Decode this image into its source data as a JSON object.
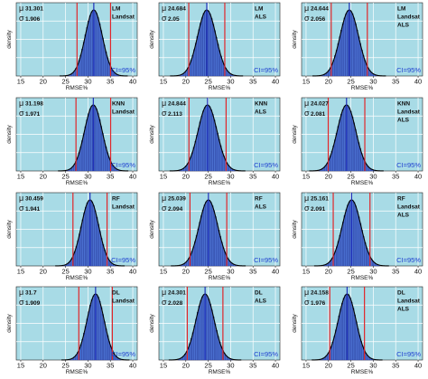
{
  "figure": {
    "ylabel": "density",
    "xlabel": "RMSE%",
    "ci_label": "CI=95%"
  },
  "colors": {
    "background": "#a8dbe6",
    "bar": "#4a6fcf",
    "bar_edge": "#1f2f8f",
    "curve": "#000000",
    "mean_line": "#1f2fb8",
    "ci_line": "#e0262a",
    "ci_text": "#1f3fd0"
  },
  "chart_data": [
    {
      "type": "bar",
      "row": 0,
      "col": 0,
      "model": "LM",
      "data": "Landsat",
      "mu": "31.301",
      "sigma": "1.906",
      "mean": 31.301,
      "sd": 1.906,
      "ci": [
        27.56,
        35.04
      ],
      "xlim": [
        14,
        41
      ],
      "xticks": [
        15,
        20,
        25,
        30,
        35,
        40
      ],
      "xlabel": "RMSE%",
      "ylabel": "density",
      "annotation": "CI=95%",
      "grid": true
    },
    {
      "type": "bar",
      "row": 0,
      "col": 1,
      "model": "LM",
      "data": "ALS",
      "mu": "24.684",
      "sigma": "2.05",
      "mean": 24.684,
      "sd": 2.05,
      "ci": [
        20.66,
        28.7
      ],
      "xlim": [
        14,
        41
      ],
      "xticks": [
        15,
        20,
        25,
        30,
        35,
        40
      ],
      "xlabel": "RMSE%",
      "ylabel": "density",
      "annotation": "CI=95%",
      "grid": true
    },
    {
      "type": "bar",
      "row": 0,
      "col": 2,
      "model": "LM",
      "data": "Landsat ALS",
      "mu": "24.644",
      "sigma": "2.056",
      "mean": 24.644,
      "sd": 2.056,
      "ci": [
        20.61,
        28.67
      ],
      "xlim": [
        14,
        41
      ],
      "xticks": [
        15,
        20,
        25,
        30,
        35,
        40
      ],
      "xlabel": "RMSE%",
      "ylabel": "density",
      "annotation": "CI=95%",
      "grid": true
    },
    {
      "type": "bar",
      "row": 1,
      "col": 0,
      "model": "KNN",
      "data": "Landsat",
      "mu": "31.198",
      "sigma": "1.971",
      "mean": 31.198,
      "sd": 1.971,
      "ci": [
        27.33,
        35.06
      ],
      "xlim": [
        14,
        41
      ],
      "xticks": [
        15,
        20,
        25,
        30,
        35,
        40
      ],
      "xlabel": "RMSE%",
      "ylabel": "density",
      "annotation": "CI=95%",
      "grid": true
    },
    {
      "type": "bar",
      "row": 1,
      "col": 1,
      "model": "KNN",
      "data": "ALS",
      "mu": "24.844",
      "sigma": "2.113",
      "mean": 24.844,
      "sd": 2.113,
      "ci": [
        20.7,
        28.99
      ],
      "xlim": [
        14,
        41
      ],
      "xticks": [
        15,
        20,
        25,
        30,
        35,
        40
      ],
      "xlabel": "RMSE%",
      "ylabel": "density",
      "annotation": "CI=95%",
      "grid": true
    },
    {
      "type": "bar",
      "row": 1,
      "col": 2,
      "model": "KNN",
      "data": "Landsat ALS",
      "mu": "24.027",
      "sigma": "2.081",
      "mean": 24.027,
      "sd": 2.081,
      "ci": [
        19.95,
        28.11
      ],
      "xlim": [
        14,
        41
      ],
      "xticks": [
        15,
        20,
        25,
        30,
        35,
        40
      ],
      "xlabel": "RMSE%",
      "ylabel": "density",
      "annotation": "CI=95%",
      "grid": true
    },
    {
      "type": "bar",
      "row": 2,
      "col": 0,
      "model": "RF",
      "data": "Landsat",
      "mu": "30.459",
      "sigma": "1.941",
      "mean": 30.459,
      "sd": 1.941,
      "ci": [
        26.65,
        34.26
      ],
      "xlim": [
        14,
        41
      ],
      "xticks": [
        15,
        20,
        25,
        30,
        35,
        40
      ],
      "xlabel": "RMSE%",
      "ylabel": "density",
      "annotation": "CI=95%",
      "grid": true
    },
    {
      "type": "bar",
      "row": 2,
      "col": 1,
      "model": "RF",
      "data": "ALS",
      "mu": "25.039",
      "sigma": "2.094",
      "mean": 25.039,
      "sd": 2.094,
      "ci": [
        20.93,
        29.14
      ],
      "xlim": [
        14,
        41
      ],
      "xticks": [
        15,
        20,
        25,
        30,
        35,
        40
      ],
      "xlabel": "RMSE%",
      "ylabel": "density",
      "annotation": "CI=95%",
      "grid": true
    },
    {
      "type": "bar",
      "row": 2,
      "col": 2,
      "model": "RF",
      "data": "Landsat ALS",
      "mu": "25.161",
      "sigma": "2.091",
      "mean": 25.161,
      "sd": 2.091,
      "ci": [
        21.06,
        29.26
      ],
      "xlim": [
        14,
        41
      ],
      "xticks": [
        15,
        20,
        25,
        30,
        35,
        40
      ],
      "xlabel": "RMSE%",
      "ylabel": "density",
      "annotation": "CI=95%",
      "grid": true
    },
    {
      "type": "bar",
      "row": 3,
      "col": 0,
      "model": "DL",
      "data": "Landsat",
      "mu": "31.7",
      "sigma": "1.909",
      "mean": 31.7,
      "sd": 1.909,
      "ci": [
        27.96,
        35.44
      ],
      "xlim": [
        14,
        41
      ],
      "xticks": [
        15,
        20,
        25,
        30,
        35,
        40
      ],
      "xlabel": "RMSE%",
      "ylabel": "density",
      "annotation": "CI=95%",
      "grid": true
    },
    {
      "type": "bar",
      "row": 3,
      "col": 1,
      "model": "DL",
      "data": "ALS",
      "mu": "24.301",
      "sigma": "2.028",
      "mean": 24.301,
      "sd": 2.028,
      "ci": [
        20.33,
        28.28
      ],
      "xlim": [
        14,
        41
      ],
      "xticks": [
        15,
        20,
        25,
        30,
        35,
        40
      ],
      "xlabel": "RMSE%",
      "ylabel": "density",
      "annotation": "CI=95%",
      "grid": true
    },
    {
      "type": "bar",
      "row": 3,
      "col": 2,
      "model": "DL",
      "data": "Landsat ALS",
      "mu": "24.158",
      "sigma": "1.976",
      "mean": 24.158,
      "sd": 1.976,
      "ci": [
        20.29,
        28.03
      ],
      "xlim": [
        14,
        41
      ],
      "xticks": [
        15,
        20,
        25,
        30,
        35,
        40
      ],
      "xlabel": "RMSE%",
      "ylabel": "density",
      "annotation": "CI=95%",
      "grid": true
    }
  ]
}
